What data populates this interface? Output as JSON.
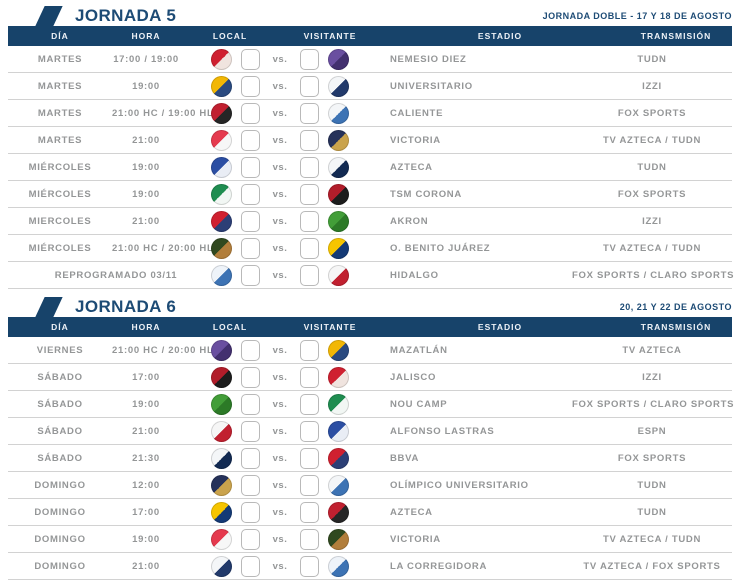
{
  "page": {
    "vs_label": "vs."
  },
  "colors": {
    "navy": "#17436a",
    "title_navy": "#1d4b75",
    "row_text": "#949697",
    "separator": "#d2d2d2",
    "score_box_border": "#b9b9b9"
  },
  "teams": {
    "toluca": {
      "name": "Toluca",
      "c1": "#cf2030",
      "c2": "#f0e4df"
    },
    "mazatlan": {
      "name": "Mazatlán",
      "c1": "#6a4fa0",
      "c2": "#43306f"
    },
    "tigres": {
      "name": "Tigres UANL",
      "c1": "#f2b705",
      "c2": "#2a4a80"
    },
    "queretaro": {
      "name": "Querétaro",
      "c1": "#f4f6f8",
      "c2": "#223a6b"
    },
    "tijuana": {
      "name": "Tijuana",
      "c1": "#c12030",
      "c2": "#262626"
    },
    "puebla": {
      "name": "Puebla",
      "c1": "#f4f6f8",
      "c2": "#3d73b4"
    },
    "necaxa": {
      "name": "Necaxa",
      "c1": "#e53a4e",
      "c2": "#f7f7f7"
    },
    "pumas": {
      "name": "Pumas UNAM",
      "c1": "#26325a",
      "c2": "#caa34c"
    },
    "cruzazul": {
      "name": "Cruz Azul",
      "c1": "#2b4ea3",
      "c2": "#e9edf5"
    },
    "monterrey": {
      "name": "Monterrey",
      "c1": "#f4f6f8",
      "c2": "#122a52"
    },
    "santos": {
      "name": "Santos Laguna",
      "c1": "#1f8d50",
      "c2": "#f2f7f4"
    },
    "atlas": {
      "name": "Atlas",
      "c1": "#b21d2a",
      "c2": "#1d1d1d"
    },
    "chivas": {
      "name": "Guadalajara",
      "c1": "#d02030",
      "c2": "#2c3f76"
    },
    "leon": {
      "name": "León",
      "c1": "#429e38",
      "c2": "#2c7a27"
    },
    "juarez": {
      "name": "FC Juárez",
      "c1": "#30491f",
      "c2": "#b27e3b"
    },
    "america": {
      "name": "América",
      "c1": "#f6c500",
      "c2": "#143a76"
    },
    "pachuca": {
      "name": "Pachuca",
      "c1": "#eef3f9",
      "c2": "#3d73b4"
    },
    "sanluis": {
      "name": "Atlético de San Luis",
      "c1": "#f6f6f6",
      "c2": "#c12030"
    }
  },
  "jornadas": [
    {
      "title": "JORNADA 5",
      "dates": "JORNADA DOBLE - 17 Y 18 DE AGOSTO",
      "columns": [
        "DÍA",
        "HORA",
        "LOCAL",
        "VISITANTE",
        "ESTADIO",
        "TRANSMISIÓN"
      ],
      "rows": [
        {
          "dia": "MARTES",
          "hora": "17:00 / 19:00",
          "local": "toluca",
          "visitante": "mazatlan",
          "estadio": "NEMESIO DIEZ",
          "transmision": "TUDN"
        },
        {
          "dia": "MARTES",
          "hora": "19:00",
          "local": "tigres",
          "visitante": "queretaro",
          "estadio": "UNIVERSITARIO",
          "transmision": "IZZI"
        },
        {
          "dia": "MARTES",
          "hora": "21:00 HC / 19:00 HL",
          "local": "tijuana",
          "visitante": "puebla",
          "estadio": "CALIENTE",
          "transmision": "FOX SPORTS"
        },
        {
          "dia": "MARTES",
          "hora": "21:00",
          "local": "necaxa",
          "visitante": "pumas",
          "estadio": "VICTORIA",
          "transmision": "TV AZTECA / TUDN"
        },
        {
          "dia": "MIÉRCOLES",
          "hora": "19:00",
          "local": "cruzazul",
          "visitante": "monterrey",
          "estadio": "AZTECA",
          "transmision": "TUDN"
        },
        {
          "dia": "MIÉRCOLES",
          "hora": "19:00",
          "local": "santos",
          "visitante": "atlas",
          "estadio": "TSM CORONA",
          "transmision": "FOX SPORTS"
        },
        {
          "dia": "MIERCOLES",
          "hora": "21:00",
          "local": "chivas",
          "visitante": "leon",
          "estadio": "AKRON",
          "transmision": "IZZI"
        },
        {
          "dia": "MIÉRCOLES",
          "hora": "21:00 HC / 20:00 HL",
          "local": "juarez",
          "visitante": "america",
          "estadio": "O. BENITO JUÁREZ",
          "transmision": "TV AZTECA / TUDN"
        },
        {
          "merged_label": "REPROGRAMADO 03/11",
          "local": "pachuca",
          "visitante": "sanluis",
          "estadio": "HIDALGO",
          "transmision": "FOX SPORTS / CLARO SPORTS"
        }
      ]
    },
    {
      "title": "JORNADA 6",
      "dates": "20, 21 Y 22 DE AGOSTO",
      "columns": [
        "DÍA",
        "HORA",
        "LOCAL",
        "VISITANTE",
        "ESTADIO",
        "TRANSMISIÓN"
      ],
      "rows": [
        {
          "dia": "VIERNES",
          "hora": "21:00 HC / 20:00 HL",
          "local": "mazatlan",
          "visitante": "tigres",
          "estadio": "MAZATLÁN",
          "transmision": "TV AZTECA"
        },
        {
          "dia": "SÁBADO",
          "hora": "17:00",
          "local": "atlas",
          "visitante": "toluca",
          "estadio": "JALISCO",
          "transmision": "IZZI"
        },
        {
          "dia": "SÁBADO",
          "hora": "19:00",
          "local": "leon",
          "visitante": "santos",
          "estadio": "NOU CAMP",
          "transmision": "FOX SPORTS / CLARO SPORTS"
        },
        {
          "dia": "SÁBADO",
          "hora": "21:00",
          "local": "sanluis",
          "visitante": "cruzazul",
          "estadio": "ALFONSO LASTRAS",
          "transmision": "ESPN"
        },
        {
          "dia": "SÁBADO",
          "hora": "21:30",
          "local": "monterrey",
          "visitante": "chivas",
          "estadio": "BBVA",
          "transmision": "FOX SPORTS"
        },
        {
          "dia": "DOMINGO",
          "hora": "12:00",
          "local": "pumas",
          "visitante": "puebla",
          "estadio": "OLÍMPICO UNIVERSITARIO",
          "transmision": "TUDN"
        },
        {
          "dia": "DOMINGO",
          "hora": "17:00",
          "local": "america",
          "visitante": "tijuana",
          "estadio": "AZTECA",
          "transmision": "TUDN"
        },
        {
          "dia": "DOMINGO",
          "hora": "19:00",
          "local": "necaxa",
          "visitante": "juarez",
          "estadio": "VICTORIA",
          "transmision": "TV AZTECA / TUDN"
        },
        {
          "dia": "DOMINGO",
          "hora": "21:00",
          "local": "queretaro",
          "visitante": "pachuca",
          "estadio": "LA CORREGIDORA",
          "transmision": "TV AZTECA / FOX SPORTS"
        }
      ]
    }
  ]
}
